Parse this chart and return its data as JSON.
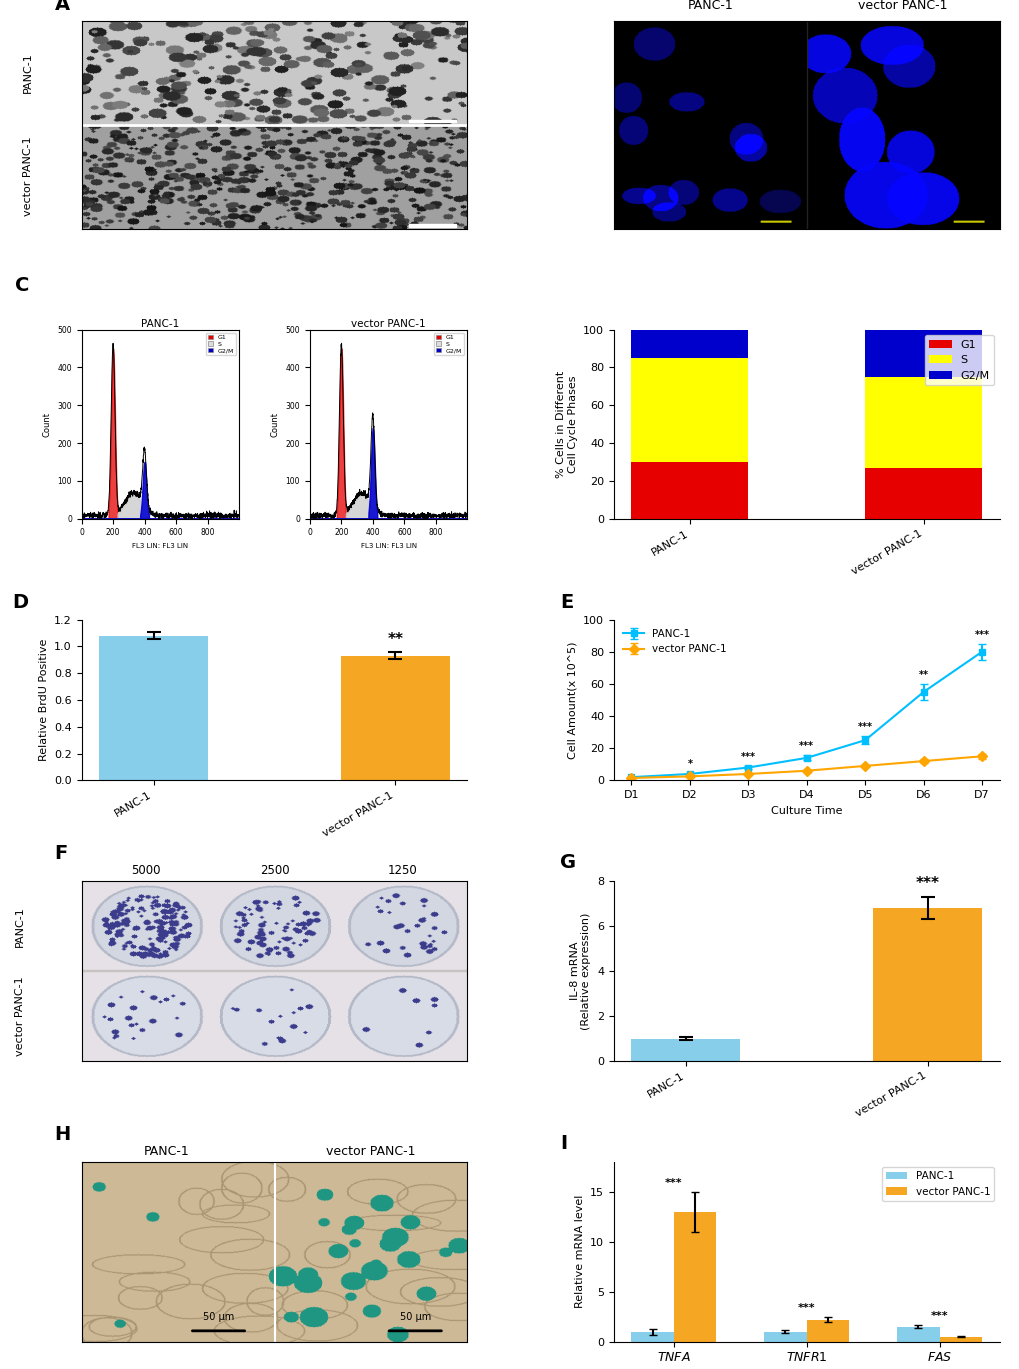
{
  "background_color": "#ffffff",
  "cell_cycle_bar": {
    "categories": [
      "PANC-1",
      "vector PANC-1"
    ],
    "G1": [
      30,
      27
    ],
    "S": [
      55,
      48
    ],
    "G2M": [
      15,
      25
    ],
    "colors": {
      "G1": "#e60000",
      "S": "#ffff00",
      "G2M": "#0000cc"
    },
    "ylabel": "% Cells in Different\nCell Cycle Phases",
    "ylim": [
      0,
      100
    ],
    "yticks": [
      0,
      20,
      40,
      60,
      80,
      100
    ]
  },
  "brdu": {
    "categories": [
      "PANC-1",
      "vector PANC-1"
    ],
    "values": [
      1.08,
      0.93
    ],
    "errors": [
      0.025,
      0.025
    ],
    "colors": [
      "#87CEEB",
      "#F5A623"
    ],
    "ylabel": "Relative BrdU Positive",
    "ylim": [
      0.0,
      1.2
    ],
    "yticks": [
      0.0,
      0.2,
      0.4,
      0.6,
      0.8,
      1.0,
      1.2
    ],
    "significance": "**"
  },
  "growth_curve": {
    "days": [
      "D1",
      "D2",
      "D3",
      "D4",
      "D5",
      "D6",
      "D7"
    ],
    "panc1": [
      2.0,
      4.0,
      8.0,
      14.0,
      25.0,
      55.0,
      80.0
    ],
    "vector": [
      1.5,
      2.5,
      4.0,
      6.0,
      9.0,
      12.0,
      15.0
    ],
    "panc1_errors": [
      0.3,
      0.5,
      0.8,
      1.5,
      2.5,
      5.0,
      5.0
    ],
    "vector_errors": [
      0.2,
      0.3,
      0.4,
      0.5,
      0.8,
      1.0,
      1.5
    ],
    "panc1_color": "#00BFFF",
    "vector_color": "#FFA500",
    "xlabel": "Culture Time",
    "ylabel": "Cell Amount(x 10^5)",
    "ylim": [
      0,
      100
    ],
    "yticks": [
      0,
      20,
      40,
      60,
      80,
      100
    ],
    "sig_positions": [
      1,
      2,
      3,
      4,
      5,
      6
    ],
    "sig_labels": [
      "*",
      "***",
      "***",
      "***",
      "**",
      "***"
    ]
  },
  "il8": {
    "categories": [
      "PANC-1",
      "vector PANC-1"
    ],
    "values": [
      1.0,
      6.8
    ],
    "errors": [
      0.08,
      0.5
    ],
    "colors": [
      "#87CEEB",
      "#F5A623"
    ],
    "ylabel": "IL-8 mRNA\n(Relative expression)",
    "ylim": [
      0,
      8
    ],
    "yticks": [
      0,
      2,
      4,
      6,
      8
    ],
    "significance": "***"
  },
  "apoptosis": {
    "genes": [
      "TNFA",
      "TNFR1",
      "FAS"
    ],
    "panc1_values": [
      1.0,
      1.0,
      1.5
    ],
    "vector_values": [
      13.0,
      2.2,
      0.5
    ],
    "panc1_errors": [
      0.3,
      0.15,
      0.15
    ],
    "vector_errors": [
      2.0,
      0.25,
      0.08
    ],
    "panc1_color": "#87CEEB",
    "vector_color": "#F5A623",
    "ylabel": "Relative mRNA level",
    "ylim": [
      0,
      18
    ],
    "yticks": [
      0,
      5,
      10,
      15
    ],
    "significance": [
      "***",
      "***",
      "***"
    ],
    "legend_labels": [
      "PANC-1",
      "vector PANC-1"
    ]
  }
}
